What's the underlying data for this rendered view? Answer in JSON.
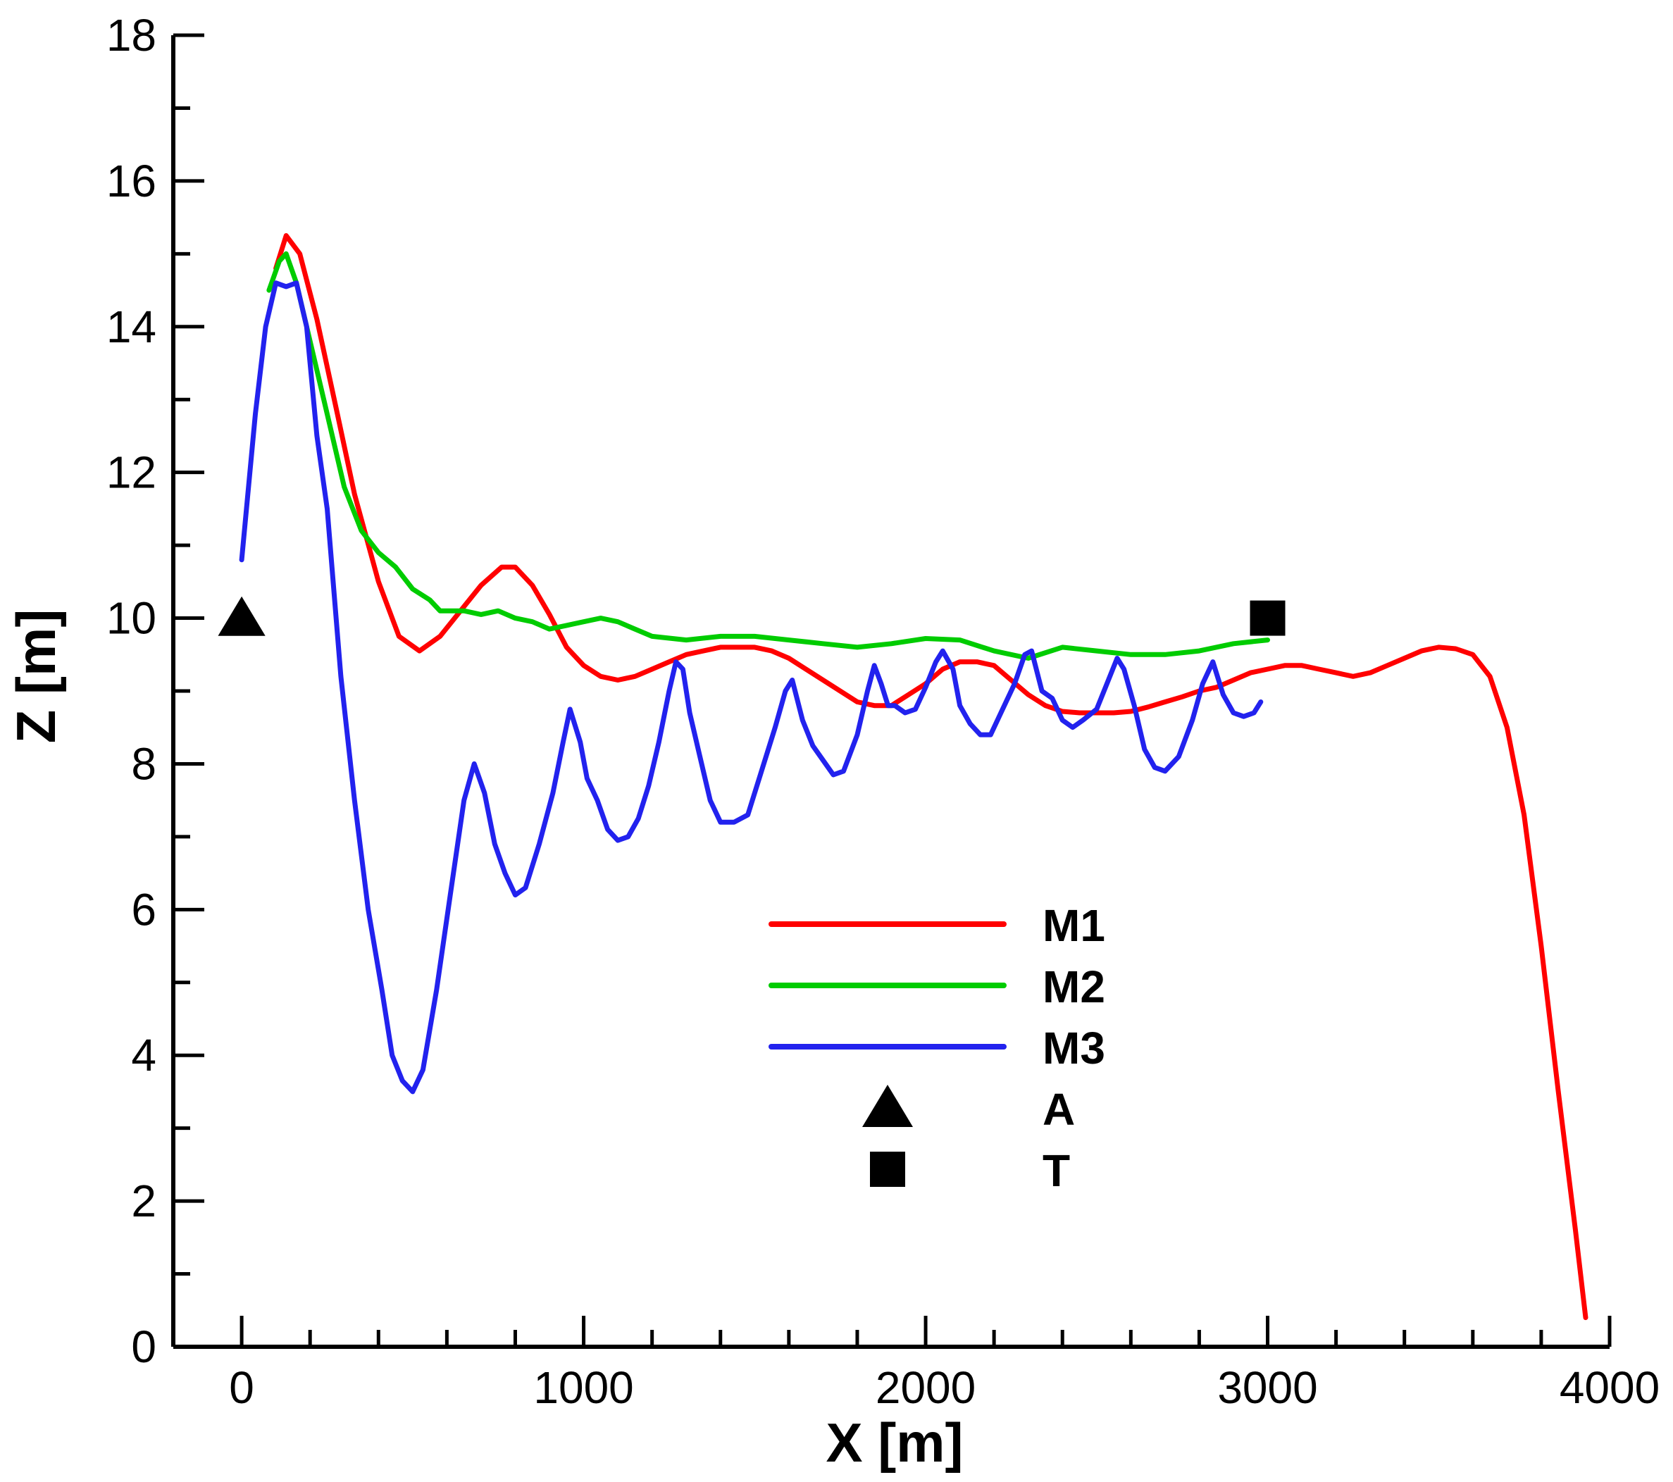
{
  "chart_data": {
    "type": "line",
    "title": "",
    "xlabel": "X [m]",
    "ylabel": "Z [m]",
    "xlim": [
      -200,
      4000
    ],
    "ylim": [
      0,
      18
    ],
    "grid": false,
    "legend_position": "center",
    "x_ticks": [
      {
        "value": 0,
        "label": "0"
      },
      {
        "value": 1000,
        "label": "1000"
      },
      {
        "value": 2000,
        "label": "2000"
      },
      {
        "value": 3000,
        "label": "3000"
      },
      {
        "value": 4000,
        "label": "4000"
      }
    ],
    "y_ticks": [
      {
        "value": 0,
        "label": "0"
      },
      {
        "value": 2,
        "label": "2"
      },
      {
        "value": 4,
        "label": "4"
      },
      {
        "value": 6,
        "label": "6"
      },
      {
        "value": 8,
        "label": "8"
      },
      {
        "value": 10,
        "label": "10"
      },
      {
        "value": 12,
        "label": "12"
      },
      {
        "value": 14,
        "label": "14"
      },
      {
        "value": 16,
        "label": "16"
      },
      {
        "value": 18,
        "label": "18"
      }
    ],
    "x_minor_step": 200,
    "y_minor_step": 1,
    "series": [
      {
        "name": "M1",
        "color": "#ff0000",
        "points": [
          [
            100,
            14.8
          ],
          [
            130,
            15.25
          ],
          [
            170,
            15.0
          ],
          [
            220,
            14.1
          ],
          [
            280,
            12.8
          ],
          [
            330,
            11.7
          ],
          [
            400,
            10.5
          ],
          [
            460,
            9.75
          ],
          [
            520,
            9.55
          ],
          [
            580,
            9.75
          ],
          [
            640,
            10.1
          ],
          [
            700,
            10.45
          ],
          [
            760,
            10.7
          ],
          [
            800,
            10.7
          ],
          [
            850,
            10.45
          ],
          [
            900,
            10.05
          ],
          [
            950,
            9.6
          ],
          [
            1000,
            9.35
          ],
          [
            1050,
            9.2
          ],
          [
            1100,
            9.15
          ],
          [
            1150,
            9.2
          ],
          [
            1200,
            9.3
          ],
          [
            1250,
            9.4
          ],
          [
            1300,
            9.5
          ],
          [
            1350,
            9.55
          ],
          [
            1400,
            9.6
          ],
          [
            1450,
            9.6
          ],
          [
            1500,
            9.6
          ],
          [
            1550,
            9.55
          ],
          [
            1600,
            9.45
          ],
          [
            1650,
            9.3
          ],
          [
            1700,
            9.15
          ],
          [
            1750,
            9.0
          ],
          [
            1800,
            8.85
          ],
          [
            1850,
            8.8
          ],
          [
            1900,
            8.8
          ],
          [
            1950,
            8.95
          ],
          [
            2000,
            9.1
          ],
          [
            2050,
            9.3
          ],
          [
            2100,
            9.4
          ],
          [
            2150,
            9.4
          ],
          [
            2200,
            9.35
          ],
          [
            2250,
            9.15
          ],
          [
            2300,
            8.95
          ],
          [
            2350,
            8.8
          ],
          [
            2400,
            8.72
          ],
          [
            2450,
            8.7
          ],
          [
            2500,
            8.7
          ],
          [
            2550,
            8.7
          ],
          [
            2600,
            8.72
          ],
          [
            2650,
            8.78
          ],
          [
            2700,
            8.85
          ],
          [
            2750,
            8.92
          ],
          [
            2800,
            9.0
          ],
          [
            2850,
            9.05
          ],
          [
            2900,
            9.15
          ],
          [
            2950,
            9.25
          ],
          [
            3000,
            9.3
          ],
          [
            3050,
            9.35
          ],
          [
            3100,
            9.35
          ],
          [
            3150,
            9.3
          ],
          [
            3200,
            9.25
          ],
          [
            3250,
            9.2
          ],
          [
            3300,
            9.25
          ],
          [
            3350,
            9.35
          ],
          [
            3400,
            9.45
          ],
          [
            3450,
            9.55
          ],
          [
            3500,
            9.6
          ],
          [
            3550,
            9.58
          ],
          [
            3600,
            9.5
          ],
          [
            3650,
            9.2
          ],
          [
            3700,
            8.5
          ],
          [
            3750,
            7.3
          ],
          [
            3800,
            5.5
          ],
          [
            3850,
            3.5
          ],
          [
            3900,
            1.6
          ],
          [
            3930,
            0.4
          ]
        ]
      },
      {
        "name": "M2",
        "color": "#00cc00",
        "points": [
          [
            80,
            14.5
          ],
          [
            110,
            14.9
          ],
          [
            130,
            15.0
          ],
          [
            160,
            14.6
          ],
          [
            200,
            13.8
          ],
          [
            250,
            12.8
          ],
          [
            300,
            11.8
          ],
          [
            350,
            11.2
          ],
          [
            400,
            10.9
          ],
          [
            450,
            10.7
          ],
          [
            500,
            10.4
          ],
          [
            550,
            10.25
          ],
          [
            580,
            10.1
          ],
          [
            650,
            10.1
          ],
          [
            700,
            10.05
          ],
          [
            750,
            10.1
          ],
          [
            800,
            10.0
          ],
          [
            850,
            9.95
          ],
          [
            900,
            9.85
          ],
          [
            950,
            9.9
          ],
          [
            1000,
            9.95
          ],
          [
            1050,
            10.0
          ],
          [
            1100,
            9.95
          ],
          [
            1150,
            9.85
          ],
          [
            1200,
            9.75
          ],
          [
            1300,
            9.7
          ],
          [
            1400,
            9.75
          ],
          [
            1500,
            9.75
          ],
          [
            1600,
            9.7
          ],
          [
            1700,
            9.65
          ],
          [
            1800,
            9.6
          ],
          [
            1900,
            9.65
          ],
          [
            2000,
            9.72
          ],
          [
            2100,
            9.7
          ],
          [
            2200,
            9.55
          ],
          [
            2300,
            9.45
          ],
          [
            2400,
            9.6
          ],
          [
            2500,
            9.55
          ],
          [
            2600,
            9.5
          ],
          [
            2700,
            9.5
          ],
          [
            2800,
            9.55
          ],
          [
            2900,
            9.65
          ],
          [
            3000,
            9.7
          ]
        ]
      },
      {
        "name": "M3",
        "color": "#2222ee",
        "points": [
          [
            0,
            10.8
          ],
          [
            40,
            12.8
          ],
          [
            70,
            14.0
          ],
          [
            100,
            14.6
          ],
          [
            130,
            14.55
          ],
          [
            160,
            14.6
          ],
          [
            190,
            14.0
          ],
          [
            220,
            12.5
          ],
          [
            250,
            11.5
          ],
          [
            290,
            9.2
          ],
          [
            330,
            7.5
          ],
          [
            370,
            6.0
          ],
          [
            410,
            4.9
          ],
          [
            440,
            4.0
          ],
          [
            470,
            3.65
          ],
          [
            500,
            3.5
          ],
          [
            530,
            3.8
          ],
          [
            570,
            4.9
          ],
          [
            610,
            6.2
          ],
          [
            650,
            7.5
          ],
          [
            680,
            8.0
          ],
          [
            710,
            7.6
          ],
          [
            740,
            6.9
          ],
          [
            770,
            6.5
          ],
          [
            800,
            6.2
          ],
          [
            830,
            6.3
          ],
          [
            870,
            6.9
          ],
          [
            910,
            7.6
          ],
          [
            940,
            8.3
          ],
          [
            960,
            8.75
          ],
          [
            990,
            8.3
          ],
          [
            1010,
            7.8
          ],
          [
            1040,
            7.5
          ],
          [
            1070,
            7.1
          ],
          [
            1100,
            6.95
          ],
          [
            1130,
            7.0
          ],
          [
            1160,
            7.25
          ],
          [
            1190,
            7.7
          ],
          [
            1220,
            8.3
          ],
          [
            1250,
            9.0
          ],
          [
            1270,
            9.4
          ],
          [
            1290,
            9.3
          ],
          [
            1310,
            8.7
          ],
          [
            1340,
            8.1
          ],
          [
            1370,
            7.5
          ],
          [
            1400,
            7.2
          ],
          [
            1440,
            7.2
          ],
          [
            1480,
            7.3
          ],
          [
            1520,
            7.9
          ],
          [
            1560,
            8.5
          ],
          [
            1590,
            9.0
          ],
          [
            1610,
            9.15
          ],
          [
            1640,
            8.6
          ],
          [
            1670,
            8.25
          ],
          [
            1700,
            8.05
          ],
          [
            1730,
            7.85
          ],
          [
            1760,
            7.9
          ],
          [
            1800,
            8.4
          ],
          [
            1830,
            9.0
          ],
          [
            1850,
            9.35
          ],
          [
            1870,
            9.1
          ],
          [
            1890,
            8.8
          ],
          [
            1910,
            8.8
          ],
          [
            1940,
            8.7
          ],
          [
            1970,
            8.75
          ],
          [
            2000,
            9.05
          ],
          [
            2030,
            9.4
          ],
          [
            2050,
            9.55
          ],
          [
            2080,
            9.3
          ],
          [
            2100,
            8.8
          ],
          [
            2130,
            8.55
          ],
          [
            2160,
            8.4
          ],
          [
            2190,
            8.4
          ],
          [
            2220,
            8.7
          ],
          [
            2260,
            9.1
          ],
          [
            2290,
            9.5
          ],
          [
            2310,
            9.55
          ],
          [
            2340,
            9.0
          ],
          [
            2370,
            8.9
          ],
          [
            2400,
            8.6
          ],
          [
            2430,
            8.5
          ],
          [
            2460,
            8.6
          ],
          [
            2500,
            8.75
          ],
          [
            2530,
            9.1
          ],
          [
            2560,
            9.45
          ],
          [
            2580,
            9.3
          ],
          [
            2610,
            8.8
          ],
          [
            2640,
            8.2
          ],
          [
            2670,
            7.95
          ],
          [
            2700,
            7.9
          ],
          [
            2740,
            8.1
          ],
          [
            2780,
            8.6
          ],
          [
            2810,
            9.1
          ],
          [
            2840,
            9.4
          ],
          [
            2870,
            8.95
          ],
          [
            2900,
            8.7
          ],
          [
            2930,
            8.65
          ],
          [
            2960,
            8.7
          ],
          [
            2980,
            8.85
          ]
        ]
      }
    ],
    "markers": [
      {
        "name": "A",
        "shape": "triangle",
        "color": "#000000",
        "x": 0,
        "y": 10.0
      },
      {
        "name": "T",
        "shape": "square",
        "color": "#000000",
        "x": 3000,
        "y": 10.0
      }
    ],
    "legend": [
      {
        "label": "M1",
        "kind": "line",
        "color": "#ff0000"
      },
      {
        "label": "M2",
        "kind": "line",
        "color": "#00cc00"
      },
      {
        "label": "M3",
        "kind": "line",
        "color": "#2222ee"
      },
      {
        "label": "A",
        "kind": "triangle",
        "color": "#000000"
      },
      {
        "label": "T",
        "kind": "square",
        "color": "#000000"
      }
    ]
  }
}
